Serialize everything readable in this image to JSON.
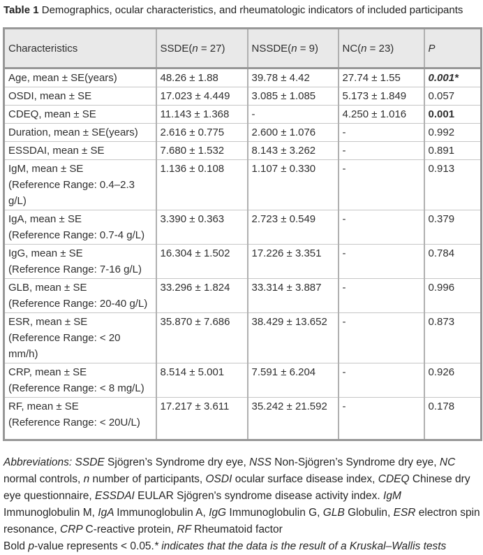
{
  "title": {
    "segments": [
      {
        "t": "Table 1 ",
        "b": true
      },
      {
        "t": "Demographics, ocular characteristics, and rheumatologic indicators of included participants"
      }
    ]
  },
  "table": {
    "headers": [
      {
        "name": "characteristics",
        "segments": [
          {
            "t": "Characteristics"
          }
        ]
      },
      {
        "name": "ssde",
        "segments": [
          {
            "t": "SSDE("
          },
          {
            "t": "n",
            "i": true
          },
          {
            "t": " = 27)"
          }
        ]
      },
      {
        "name": "nssde",
        "segments": [
          {
            "t": "NSSDE("
          },
          {
            "t": "n",
            "i": true
          },
          {
            "t": " = 9)"
          }
        ]
      },
      {
        "name": "nc",
        "segments": [
          {
            "t": "NC("
          },
          {
            "t": "n",
            "i": true
          },
          {
            "t": " = 23)"
          }
        ]
      },
      {
        "name": "p",
        "segments": [
          {
            "t": "P",
            "i": true
          }
        ]
      }
    ],
    "rows": [
      {
        "label": "Age, mean ± SE(years)",
        "ref": "",
        "values": [
          "48.26 ± 1.88",
          "39.78 ± 4.42",
          "27.74 ± 1.55"
        ],
        "p": "0.001*",
        "p_style": "bold-italic"
      },
      {
        "label": "OSDI, mean ± SE",
        "ref": "",
        "values": [
          "17.023 ± 4.449",
          "3.085 ± 1.085",
          "5.173 ± 1.849"
        ],
        "p": "0.057",
        "p_style": "normal"
      },
      {
        "label": "CDEQ, mean ± SE",
        "ref": "",
        "values": [
          "11.143 ± 1.368",
          "-",
          "4.250 ± 1.016"
        ],
        "p": "0.001",
        "p_style": "bold"
      },
      {
        "label": "Duration, mean ± SE(years)",
        "ref": "",
        "values": [
          "2.616 ± 0.775",
          "2.600 ± 1.076",
          "-"
        ],
        "p": "0.992",
        "p_style": "normal"
      },
      {
        "label": "ESSDAI, mean ± SE",
        "ref": "",
        "values": [
          "7.680 ± 1.532",
          "8.143 ± 3.262",
          "-"
        ],
        "p": "0.891",
        "p_style": "normal"
      },
      {
        "label": "IgM, mean ± SE",
        "ref": "(Reference Range: 0.4–2.3 g/L)",
        "values": [
          "1.136 ± 0.108",
          "1.107 ± 0.330",
          "-"
        ],
        "p": "0.913",
        "p_style": "normal"
      },
      {
        "label": "IgA, mean ± SE",
        "ref": "(Reference Range: 0.7-4 g/L)",
        "values": [
          "3.390 ± 0.363",
          "2.723 ± 0.549",
          "-"
        ],
        "p": "0.379",
        "p_style": "normal"
      },
      {
        "label": "IgG, mean ± SE",
        "ref": "(Reference Range: 7-16 g/L)",
        "values": [
          "16.304 ± 1.502",
          "17.226 ± 3.351",
          "-"
        ],
        "p": "0.784",
        "p_style": "normal"
      },
      {
        "label": "GLB, mean ± SE",
        "ref": "(Reference Range: 20-40 g/L)",
        "values": [
          "33.296 ± 1.824",
          "33.314 ± 3.887",
          "-"
        ],
        "p": "0.996",
        "p_style": "normal"
      },
      {
        "label": "ESR, mean ± SE",
        "ref": "(Reference Range: < 20 mm/h)",
        "values": [
          "35.870 ± 7.686",
          "38.429 ± 13.652",
          "-"
        ],
        "p": "0.873",
        "p_style": "normal"
      },
      {
        "label": "CRP, mean ± SE",
        "ref": "(Reference Range: < 8 mg/L)",
        "values": [
          "8.514 ± 5.001",
          "7.591 ± 6.204",
          "-"
        ],
        "p": "0.926",
        "p_style": "normal"
      },
      {
        "label": "RF, mean ± SE",
        "ref": "(Reference Range: < 20U/L)",
        "values": [
          "17.217 ± 3.611",
          "35.242 ± 21.592",
          "-"
        ],
        "p": "0.178",
        "p_style": "normal"
      }
    ]
  },
  "footnotes": [
    {
      "segments": [
        {
          "t": "Abbreviations: ",
          "i": true
        },
        {
          "t": "SSDE ",
          "i": true
        },
        {
          "t": "Sjögren’s Syndrome dry eye, "
        },
        {
          "t": "NSS ",
          "i": true
        },
        {
          "t": "Non-Sjögren’s Syndrome dry eye, "
        },
        {
          "t": "NC ",
          "i": true
        },
        {
          "t": "normal controls, "
        },
        {
          "t": "n ",
          "i": true
        },
        {
          "t": "number of participants, "
        },
        {
          "t": "OSDI ",
          "i": true
        },
        {
          "t": "ocular surface disease index, "
        },
        {
          "t": "CDEQ ",
          "i": true
        },
        {
          "t": "Chinese dry eye questionnaire, "
        },
        {
          "t": "ESSDAI ",
          "i": true
        },
        {
          "t": "EULAR Sjögren's syndrome disease activity index. "
        },
        {
          "t": "IgM ",
          "i": true
        },
        {
          "t": "Immunoglobulin M, "
        },
        {
          "t": "IgA ",
          "i": true
        },
        {
          "t": "Immunoglobulin A, "
        },
        {
          "t": "IgG ",
          "i": true
        },
        {
          "t": "Immunoglobulin G, "
        },
        {
          "t": "GLB ",
          "i": true
        },
        {
          "t": "Globulin, "
        },
        {
          "t": "ESR ",
          "i": true
        },
        {
          "t": "electron spin resonance, "
        },
        {
          "t": "CRP ",
          "i": true
        },
        {
          "t": "C-reactive protein, "
        },
        {
          "t": "RF ",
          "i": true
        },
        {
          "t": "Rheumatoid factor"
        }
      ]
    },
    {
      "segments": [
        {
          "t": "Bold "
        },
        {
          "t": "p",
          "i": true
        },
        {
          "t": "-value represents < 0.05."
        },
        {
          "t": "* indicates that the data is the result of a Kruskal–Wallis tests",
          "i": true
        }
      ]
    }
  ],
  "colors": {
    "header_background": "#e9e9e9",
    "border_dark": "#979797",
    "border_mid": "#b0b0b0",
    "border_light": "#c6c6c6",
    "text": "#2e2e2e"
  }
}
